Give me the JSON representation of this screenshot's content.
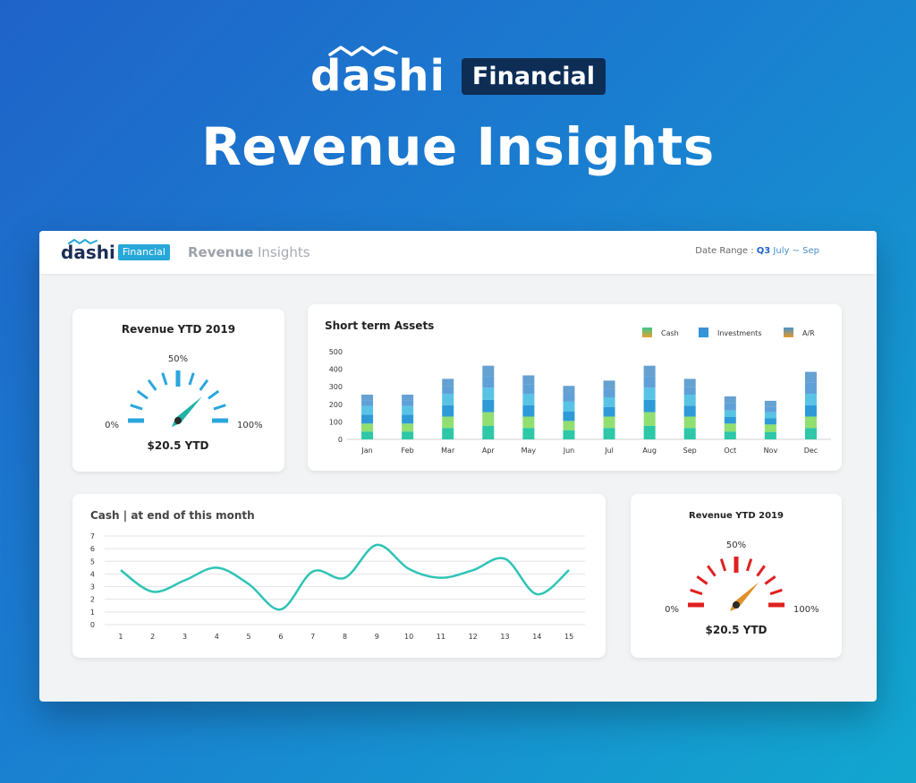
{
  "hero": {
    "brand": "dashi",
    "badge": "Financial",
    "title": "Revenue Insights"
  },
  "topbar": {
    "brand": "dashi",
    "badge": "Financial",
    "title_bold": "Revenue",
    "title_rest": " Insights",
    "date_label": "Date Range : ",
    "quarter": "Q3",
    "months": " July ~ Sep"
  },
  "gauge_top": {
    "title": "Revenue YTD 2019",
    "min_label": "0%",
    "mid_label": "50%",
    "max_label": "100%",
    "value_label": "$20.5 YTD",
    "color": "#2aa6de",
    "needle_color": "#1fb3a6"
  },
  "gauge_bottom": {
    "title": "Revenue YTD 2019",
    "min_label": "0%",
    "mid_label": "50%",
    "max_label": "100%",
    "value_label": "$20.5 YTD",
    "color": "#e02020",
    "needle_color": "#e0902a"
  },
  "chart_data": [
    {
      "type": "bar",
      "title": "Short term Assets",
      "stacked": true,
      "categories": [
        "Jan",
        "Feb",
        "Mar",
        "Apr",
        "May",
        "Jun",
        "Jul",
        "Aug",
        "Sep",
        "Oct",
        "Nov",
        "Dec"
      ],
      "series": [
        {
          "name": "Cash",
          "values": [
            90,
            90,
            130,
            155,
            130,
            105,
            130,
            155,
            130,
            90,
            85,
            130
          ],
          "color": "#3cc98c"
        },
        {
          "name": "Investments",
          "values": [
            100,
            100,
            130,
            140,
            130,
            110,
            110,
            140,
            125,
            75,
            70,
            130
          ],
          "color": "#3a8fd6"
        },
        {
          "name": "A/R",
          "values": [
            65,
            65,
            85,
            125,
            105,
            90,
            95,
            125,
            90,
            80,
            65,
            125
          ],
          "color": "#4a92c8"
        }
      ],
      "legend_swatches": [
        "#e8a030",
        "#2e9ad8",
        "#e89a30"
      ],
      "yticks": [
        0,
        100,
        200,
        300,
        400,
        500
      ],
      "ylim": [
        0,
        500
      ],
      "legend": "top-right",
      "grid": false
    },
    {
      "type": "line",
      "title": "Cash | at end of this month",
      "x": [
        1,
        2,
        3,
        4,
        5,
        6,
        7,
        8,
        9,
        10,
        11,
        12,
        13,
        14,
        15
      ],
      "series": [
        {
          "values": [
            4.3,
            2.6,
            3.5,
            4.5,
            3.2,
            1.2,
            4.2,
            3.7,
            6.3,
            4.4,
            3.7,
            4.3,
            5.2,
            2.4,
            4.3
          ],
          "color": "#2ec4b6"
        }
      ],
      "yticks": [
        0,
        1,
        2,
        3,
        4,
        5,
        6,
        7
      ],
      "ylim": [
        0,
        7
      ],
      "grid": true
    }
  ]
}
